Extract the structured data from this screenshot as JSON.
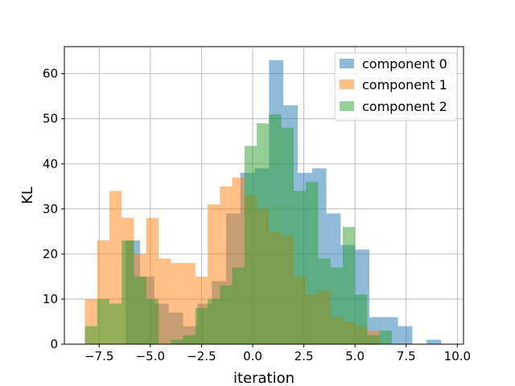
{
  "chart_data": {
    "type": "histogram",
    "xlabel": "iteration",
    "ylabel": "KL",
    "xlim": [
      -9.2,
      10.3
    ],
    "ylim": [
      0,
      66
    ],
    "xticks": [
      -7.5,
      -5.0,
      -2.5,
      0.0,
      2.5,
      5.0,
      7.5,
      10.0
    ],
    "xtick_labels": [
      "−7.5",
      "−5.0",
      "−2.5",
      "0.0",
      "2.5",
      "5.0",
      "7.5",
      "10.0"
    ],
    "yticks": [
      0,
      10,
      20,
      30,
      40,
      50,
      60
    ],
    "ytick_labels": [
      "0",
      "10",
      "20",
      "30",
      "40",
      "50",
      "60"
    ],
    "grid": true,
    "legend_position": "top-right",
    "series": [
      {
        "name": "component 0",
        "color": "#1f77b4",
        "bins": [
          {
            "x0": -6.2,
            "x1": -5.5,
            "value": 23
          },
          {
            "x0": -5.5,
            "x1": -4.8,
            "value": 15
          },
          {
            "x0": -4.8,
            "x1": -4.1,
            "value": 9
          },
          {
            "x0": -4.1,
            "x1": -3.4,
            "value": 7
          },
          {
            "x0": -3.4,
            "x1": -2.7,
            "value": 4
          },
          {
            "x0": -2.7,
            "x1": -2.0,
            "value": 9
          },
          {
            "x0": -2.0,
            "x1": -1.3,
            "value": 14
          },
          {
            "x0": -1.3,
            "x1": -0.6,
            "value": 29
          },
          {
            "x0": -0.6,
            "x1": 0.1,
            "value": 38
          },
          {
            "x0": 0.1,
            "x1": 0.8,
            "value": 39
          },
          {
            "x0": 0.8,
            "x1": 1.5,
            "value": 63
          },
          {
            "x0": 1.5,
            "x1": 2.2,
            "value": 53
          },
          {
            "x0": 2.2,
            "x1": 2.9,
            "value": 38
          },
          {
            "x0": 2.9,
            "x1": 3.6,
            "value": 39
          },
          {
            "x0": 3.6,
            "x1": 4.3,
            "value": 29
          },
          {
            "x0": 4.3,
            "x1": 5.0,
            "value": 22
          },
          {
            "x0": 5.0,
            "x1": 5.7,
            "value": 21
          },
          {
            "x0": 5.7,
            "x1": 6.4,
            "value": 6
          },
          {
            "x0": 6.4,
            "x1": 7.1,
            "value": 6
          },
          {
            "x0": 7.1,
            "x1": 7.8,
            "value": 4
          },
          {
            "x0": 8.5,
            "x1": 9.2,
            "value": 1
          }
        ]
      },
      {
        "name": "component 1",
        "color": "#ff7f0e",
        "bins": [
          {
            "x0": -8.2,
            "x1": -7.6,
            "value": 10
          },
          {
            "x0": -7.6,
            "x1": -7.0,
            "value": 23
          },
          {
            "x0": -7.0,
            "x1": -6.4,
            "value": 34
          },
          {
            "x0": -6.4,
            "x1": -5.8,
            "value": 28
          },
          {
            "x0": -5.8,
            "x1": -5.2,
            "value": 20
          },
          {
            "x0": -5.2,
            "x1": -4.6,
            "value": 28
          },
          {
            "x0": -4.6,
            "x1": -4.0,
            "value": 19
          },
          {
            "x0": -4.0,
            "x1": -3.4,
            "value": 18
          },
          {
            "x0": -3.4,
            "x1": -2.8,
            "value": 18
          },
          {
            "x0": -2.8,
            "x1": -2.2,
            "value": 15
          },
          {
            "x0": -2.2,
            "x1": -1.6,
            "value": 31
          },
          {
            "x0": -1.6,
            "x1": -1.0,
            "value": 35
          },
          {
            "x0": -1.0,
            "x1": -0.4,
            "value": 37
          },
          {
            "x0": -0.4,
            "x1": 0.2,
            "value": 33
          },
          {
            "x0": 0.2,
            "x1": 0.8,
            "value": 30
          },
          {
            "x0": 0.8,
            "x1": 1.4,
            "value": 25
          },
          {
            "x0": 1.4,
            "x1": 2.0,
            "value": 24
          },
          {
            "x0": 2.0,
            "x1": 2.6,
            "value": 15
          },
          {
            "x0": 2.6,
            "x1": 3.2,
            "value": 11
          },
          {
            "x0": 3.2,
            "x1": 3.8,
            "value": 12
          },
          {
            "x0": 3.8,
            "x1": 4.4,
            "value": 6
          },
          {
            "x0": 4.4,
            "x1": 5.0,
            "value": 5
          },
          {
            "x0": 5.0,
            "x1": 5.6,
            "value": 4
          },
          {
            "x0": 5.6,
            "x1": 6.2,
            "value": 3
          }
        ]
      },
      {
        "name": "component 2",
        "color": "#2ca02c",
        "bins": [
          {
            "x0": -8.2,
            "x1": -7.6,
            "value": 4
          },
          {
            "x0": -7.6,
            "x1": -7.0,
            "value": 10
          },
          {
            "x0": -7.0,
            "x1": -6.4,
            "value": 9
          },
          {
            "x0": -6.4,
            "x1": -5.8,
            "value": 23
          },
          {
            "x0": -5.8,
            "x1": -5.2,
            "value": 15
          },
          {
            "x0": -5.2,
            "x1": -4.6,
            "value": 10
          },
          {
            "x0": -4.6,
            "x1": -4.0,
            "value": 0
          },
          {
            "x0": -4.0,
            "x1": -3.4,
            "value": 1
          },
          {
            "x0": -3.4,
            "x1": -2.8,
            "value": 2
          },
          {
            "x0": -2.8,
            "x1": -2.2,
            "value": 8
          },
          {
            "x0": -2.2,
            "x1": -1.6,
            "value": 10
          },
          {
            "x0": -1.6,
            "x1": -1.0,
            "value": 13
          },
          {
            "x0": -1.0,
            "x1": -0.4,
            "value": 17
          },
          {
            "x0": -0.4,
            "x1": 0.2,
            "value": 44
          },
          {
            "x0": 0.2,
            "x1": 0.8,
            "value": 49
          },
          {
            "x0": 0.8,
            "x1": 1.4,
            "value": 51
          },
          {
            "x0": 1.4,
            "x1": 2.0,
            "value": 48
          },
          {
            "x0": 2.0,
            "x1": 2.6,
            "value": 34
          },
          {
            "x0": 2.6,
            "x1": 3.2,
            "value": 36
          },
          {
            "x0": 3.2,
            "x1": 3.8,
            "value": 19
          },
          {
            "x0": 3.8,
            "x1": 4.4,
            "value": 17
          },
          {
            "x0": 4.4,
            "x1": 5.0,
            "value": 26
          },
          {
            "x0": 5.0,
            "x1": 5.6,
            "value": 11
          },
          {
            "x0": 5.6,
            "x1": 6.2,
            "value": 2
          },
          {
            "x0": 6.2,
            "x1": 6.8,
            "value": 3
          }
        ]
      }
    ]
  }
}
